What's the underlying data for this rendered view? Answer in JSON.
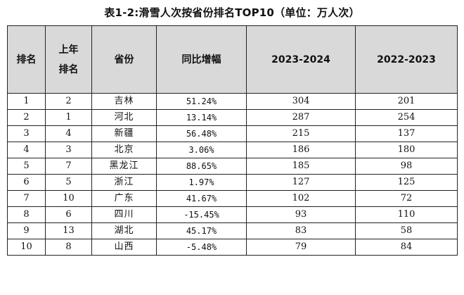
{
  "title": "表1-2:滑雪人次按省份排名TOP10（单位：万人次）",
  "table": {
    "headers": {
      "rank": "排名",
      "last_year_rank_line1": "上年",
      "last_year_rank_line2": "排名",
      "province": "省份",
      "yoy_growth": "同比增幅",
      "season_2023_2024": "2023-2024",
      "season_2022_2023": "2022-2023"
    },
    "rows": [
      {
        "rank": "1",
        "last_rank": "2",
        "province": "吉林",
        "yoy": "51.24%",
        "v2324": "304",
        "v2223": "201"
      },
      {
        "rank": "2",
        "last_rank": "1",
        "province": "河北",
        "yoy": "13.14%",
        "v2324": "287",
        "v2223": "254"
      },
      {
        "rank": "3",
        "last_rank": "4",
        "province": "新疆",
        "yoy": "56.48%",
        "v2324": "215",
        "v2223": "137"
      },
      {
        "rank": "4",
        "last_rank": "3",
        "province": "北京",
        "yoy": "3.06%",
        "v2324": "186",
        "v2223": "180"
      },
      {
        "rank": "5",
        "last_rank": "7",
        "province": "黑龙江",
        "yoy": "88.65%",
        "v2324": "185",
        "v2223": "98"
      },
      {
        "rank": "6",
        "last_rank": "5",
        "province": "浙江",
        "yoy": "1.97%",
        "v2324": "127",
        "v2223": "125"
      },
      {
        "rank": "7",
        "last_rank": "10",
        "province": "广东",
        "yoy": "41.67%",
        "v2324": "102",
        "v2223": "72"
      },
      {
        "rank": "8",
        "last_rank": "6",
        "province": "四川",
        "yoy": "-15.45%",
        "v2324": "93",
        "v2223": "110"
      },
      {
        "rank": "9",
        "last_rank": "13",
        "province": "湖北",
        "yoy": "45.17%",
        "v2324": "83",
        "v2223": "58"
      },
      {
        "rank": "10",
        "last_rank": "8",
        "province": "山西",
        "yoy": "-5.48%",
        "v2324": "79",
        "v2223": "84"
      }
    ]
  }
}
